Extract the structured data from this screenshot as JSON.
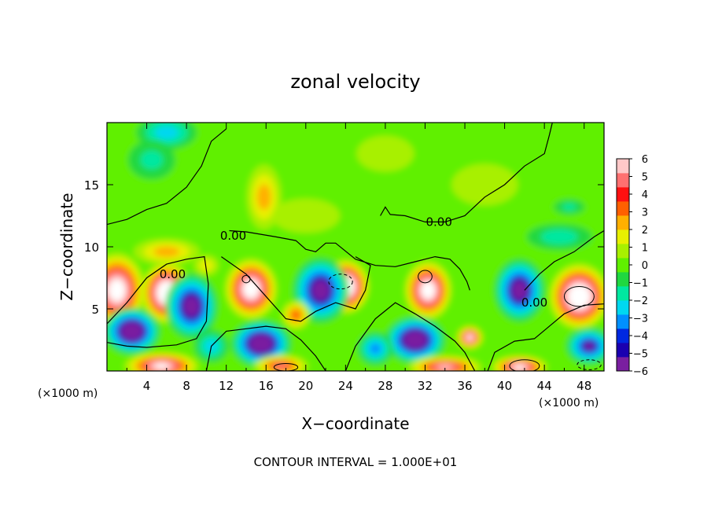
{
  "chart_data": {
    "type": "heatmap",
    "title": "zonal velocity",
    "xlabel": "X−coordinate",
    "ylabel": "Z−coordinate",
    "x_units": "(×1000 m)",
    "y_units": "(×1000 m)",
    "xlim": [
      0,
      50
    ],
    "ylim": [
      0,
      20
    ],
    "x_ticks": [
      4,
      8,
      12,
      16,
      20,
      24,
      28,
      32,
      36,
      40,
      44,
      48
    ],
    "y_ticks": [
      5,
      10,
      15
    ],
    "colorbar": {
      "min": -6,
      "max": 6,
      "ticks": [
        6,
        5,
        4,
        3,
        2,
        1,
        0,
        -1,
        -2,
        -3,
        -4,
        -5,
        -6
      ],
      "tick_labels": [
        "6",
        "5",
        "4",
        "3",
        "2",
        "1",
        "0",
        "−1",
        "−2",
        "−3",
        "−4",
        "−5",
        "−6"
      ],
      "colors": [
        "#7a1fa0",
        "#1a00b0",
        "#0028e0",
        "#0090ff",
        "#00d8f0",
        "#00e8a0",
        "#20d840",
        "#60f000",
        "#a8f000",
        "#e8f000",
        "#ffb000",
        "#ff6000",
        "#ff1010",
        "#ff7070",
        "#ffc8c8"
      ],
      "above_max_color": "#ffffff"
    },
    "contour_labels": [
      {
        "text": "0.00",
        "x": 12.7,
        "y": 10.9
      },
      {
        "text": "0.00",
        "x": 6.6,
        "y": 7.8
      },
      {
        "text": "0.00",
        "x": 33.4,
        "y": 12.0
      },
      {
        "text": "0.00",
        "x": 43.0,
        "y": 5.5
      }
    ],
    "contour_interval_text": "CONTOUR INTERVAL = 1.000E+01",
    "field_blobs": [
      {
        "x": 1.0,
        "y": 6.5,
        "rx": 3.0,
        "ry": 3.2,
        "v": 8
      },
      {
        "x": 6.0,
        "y": 6.3,
        "rx": 2.7,
        "ry": 2.6,
        "v": 9
      },
      {
        "x": 14.5,
        "y": 6.6,
        "rx": 2.8,
        "ry": 2.6,
        "v": 8
      },
      {
        "x": 24.0,
        "y": 6.8,
        "rx": 2.5,
        "ry": 2.3,
        "v": 9
      },
      {
        "x": 32.3,
        "y": 6.5,
        "rx": 2.5,
        "ry": 2.5,
        "v": 8
      },
      {
        "x": 47.5,
        "y": 6.0,
        "rx": 3.2,
        "ry": 2.8,
        "v": 9
      },
      {
        "x": 2.5,
        "y": 3.2,
        "rx": 3.0,
        "ry": 2.0,
        "v": -8
      },
      {
        "x": 8.5,
        "y": 5.2,
        "rx": 2.8,
        "ry": 2.8,
        "v": -7
      },
      {
        "x": 15.5,
        "y": 2.2,
        "rx": 3.2,
        "ry": 2.0,
        "v": -8
      },
      {
        "x": 21.5,
        "y": 6.5,
        "rx": 3.0,
        "ry": 2.8,
        "v": -7
      },
      {
        "x": 31.0,
        "y": 2.5,
        "rx": 3.2,
        "ry": 2.0,
        "v": -8
      },
      {
        "x": 41.5,
        "y": 6.5,
        "rx": 2.7,
        "ry": 2.7,
        "v": -7
      },
      {
        "x": 48.5,
        "y": 2.0,
        "rx": 2.5,
        "ry": 1.6,
        "v": -6
      },
      {
        "x": 27.0,
        "y": 1.8,
        "rx": 2.0,
        "ry": 1.5,
        "v": -4
      },
      {
        "x": 10.5,
        "y": 2.0,
        "rx": 2.0,
        "ry": 1.5,
        "v": -3
      },
      {
        "x": 5.5,
        "y": 0.4,
        "rx": 4.0,
        "ry": 1.2,
        "v": 7
      },
      {
        "x": 17.5,
        "y": 0.4,
        "rx": 3.0,
        "ry": 1.0,
        "v": 5
      },
      {
        "x": 34.0,
        "y": 0.3,
        "rx": 4.0,
        "ry": 1.0,
        "v": 6
      },
      {
        "x": 41.5,
        "y": 0.3,
        "rx": 3.0,
        "ry": 1.0,
        "v": 7
      },
      {
        "x": 36.5,
        "y": 2.7,
        "rx": 1.4,
        "ry": 1.0,
        "v": 7
      },
      {
        "x": 19.0,
        "y": 4.5,
        "rx": 1.6,
        "ry": 1.3,
        "v": 4
      },
      {
        "x": 6.0,
        "y": 9.6,
        "rx": 3.8,
        "ry": 1.2,
        "v": 3
      },
      {
        "x": 10.0,
        "y": 8.5,
        "rx": 1.5,
        "ry": 1.0,
        "v": 2
      },
      {
        "x": 15.8,
        "y": 14.0,
        "rx": 2.0,
        "ry": 3.0,
        "v": 3
      },
      {
        "x": 6.0,
        "y": 19.2,
        "rx": 3.5,
        "ry": 1.6,
        "v": -3
      },
      {
        "x": 4.5,
        "y": 17.0,
        "rx": 3.0,
        "ry": 2.0,
        "v": -1.6
      },
      {
        "x": 45.5,
        "y": 10.8,
        "rx": 4.0,
        "ry": 1.3,
        "v": -2
      },
      {
        "x": 46.5,
        "y": 13.2,
        "rx": 2.0,
        "ry": 0.8,
        "v": -1.5
      },
      {
        "x": 20.0,
        "y": 12.5,
        "rx": 5.0,
        "ry": 2.0,
        "v": 0.8
      },
      {
        "x": 38.0,
        "y": 15.0,
        "rx": 5.0,
        "ry": 2.5,
        "v": 0.7
      },
      {
        "x": 28.0,
        "y": 17.5,
        "rx": 4.0,
        "ry": 2.0,
        "v": 1.0
      }
    ],
    "field_background": [
      {
        "x_max": 50,
        "y_min": 12,
        "v": 0.1
      },
      {
        "x_max": 50,
        "y_min": 0,
        "v": 0.0
      }
    ],
    "zero_contours": [
      {
        "points": [
          [
            0,
            11.8
          ],
          [
            2,
            12.2
          ],
          [
            4,
            13.0
          ],
          [
            6,
            13.5
          ],
          [
            8,
            14.8
          ],
          [
            9.5,
            16.5
          ],
          [
            10.5,
            18.5
          ],
          [
            12,
            19.5
          ]
        ]
      },
      {
        "points": [
          [
            12.3,
            11.3
          ],
          [
            14,
            11.2
          ],
          [
            17,
            10.8
          ],
          [
            19,
            10.5
          ],
          [
            20,
            9.8
          ],
          [
            21,
            9.6
          ],
          [
            22,
            10.3
          ],
          [
            23,
            10.3
          ],
          [
            25,
            9.0
          ],
          [
            27,
            8.5
          ],
          [
            29,
            8.4
          ],
          [
            31,
            8.8
          ],
          [
            33,
            9.2
          ],
          [
            34.5,
            9.0
          ],
          [
            35.5,
            8.2
          ],
          [
            36.2,
            7.2
          ],
          [
            36.5,
            6.5
          ]
        ]
      },
      {
        "points": [
          [
            27.5,
            12.5
          ],
          [
            28,
            13.2
          ],
          [
            28.5,
            12.6
          ],
          [
            30,
            12.5
          ],
          [
            32,
            12.0
          ],
          [
            34,
            12.0
          ],
          [
            36,
            12.5
          ],
          [
            38,
            14.0
          ],
          [
            40,
            15.0
          ],
          [
            42,
            16.5
          ],
          [
            44,
            17.5
          ],
          [
            44.5,
            19.0
          ],
          [
            44.8,
            20.0
          ]
        ]
      },
      {
        "points": [
          [
            0,
            3.8
          ],
          [
            2,
            5.5
          ],
          [
            4,
            7.5
          ],
          [
            6,
            8.6
          ],
          [
            8,
            9.0
          ],
          [
            9.8,
            9.2
          ],
          [
            10.2,
            7.0
          ],
          [
            10.0,
            4.0
          ],
          [
            9.0,
            2.6
          ],
          [
            7,
            2.1
          ],
          [
            4,
            1.9
          ],
          [
            2,
            2.0
          ],
          [
            0,
            2.3
          ]
        ]
      },
      {
        "points": [
          [
            10.0,
            0
          ],
          [
            10.5,
            2.0
          ],
          [
            12,
            3.2
          ],
          [
            14,
            3.4
          ],
          [
            16,
            3.6
          ],
          [
            18,
            3.4
          ],
          [
            19.5,
            2.5
          ],
          [
            21,
            1.2
          ],
          [
            22,
            0
          ]
        ]
      },
      {
        "points": [
          [
            11.5,
            9.2
          ],
          [
            14,
            7.8
          ],
          [
            16,
            6.0
          ],
          [
            18,
            4.2
          ],
          [
            19.5,
            4.0
          ],
          [
            21,
            4.8
          ],
          [
            23,
            5.5
          ],
          [
            25,
            5.0
          ],
          [
            26,
            6.5
          ],
          [
            26.5,
            8.5
          ],
          [
            25,
            9.2
          ]
        ]
      },
      {
        "points": [
          [
            24,
            0
          ],
          [
            25,
            2.0
          ],
          [
            27,
            4.2
          ],
          [
            29,
            5.5
          ],
          [
            31,
            4.6
          ],
          [
            33,
            3.6
          ],
          [
            35,
            2.4
          ],
          [
            36,
            1.5
          ],
          [
            37,
            0
          ]
        ]
      },
      {
        "points": [
          [
            38.3,
            0
          ],
          [
            39,
            1.5
          ],
          [
            41,
            2.4
          ],
          [
            43,
            2.6
          ],
          [
            44.5,
            3.6
          ],
          [
            46,
            4.6
          ],
          [
            48,
            5.3
          ],
          [
            50,
            5.4
          ]
        ]
      },
      {
        "points": [
          [
            42,
            6.5
          ],
          [
            43.5,
            7.8
          ],
          [
            45,
            8.8
          ],
          [
            47,
            9.6
          ],
          [
            49,
            10.8
          ],
          [
            50,
            11.3
          ]
        ]
      }
    ],
    "minor_contours": [
      {
        "cx": 23.5,
        "cy": 7.2,
        "rx": 1.2,
        "ry": 0.6,
        "dashed": true
      },
      {
        "cx": 14.0,
        "cy": 7.4,
        "rx": 0.4,
        "ry": 0.3,
        "dashed": false
      },
      {
        "cx": 32.0,
        "cy": 7.6,
        "rx": 0.7,
        "ry": 0.5,
        "dashed": false
      },
      {
        "cx": 47.5,
        "cy": 6.0,
        "rx": 1.5,
        "ry": 0.8,
        "dashed": false
      },
      {
        "cx": 42.0,
        "cy": 0.4,
        "rx": 1.5,
        "ry": 0.5,
        "dashed": false
      },
      {
        "cx": 18.0,
        "cy": 0.3,
        "rx": 1.2,
        "ry": 0.3,
        "dashed": false
      },
      {
        "cx": 48.5,
        "cy": 0.5,
        "rx": 1.2,
        "ry": 0.4,
        "dashed": true
      }
    ]
  }
}
